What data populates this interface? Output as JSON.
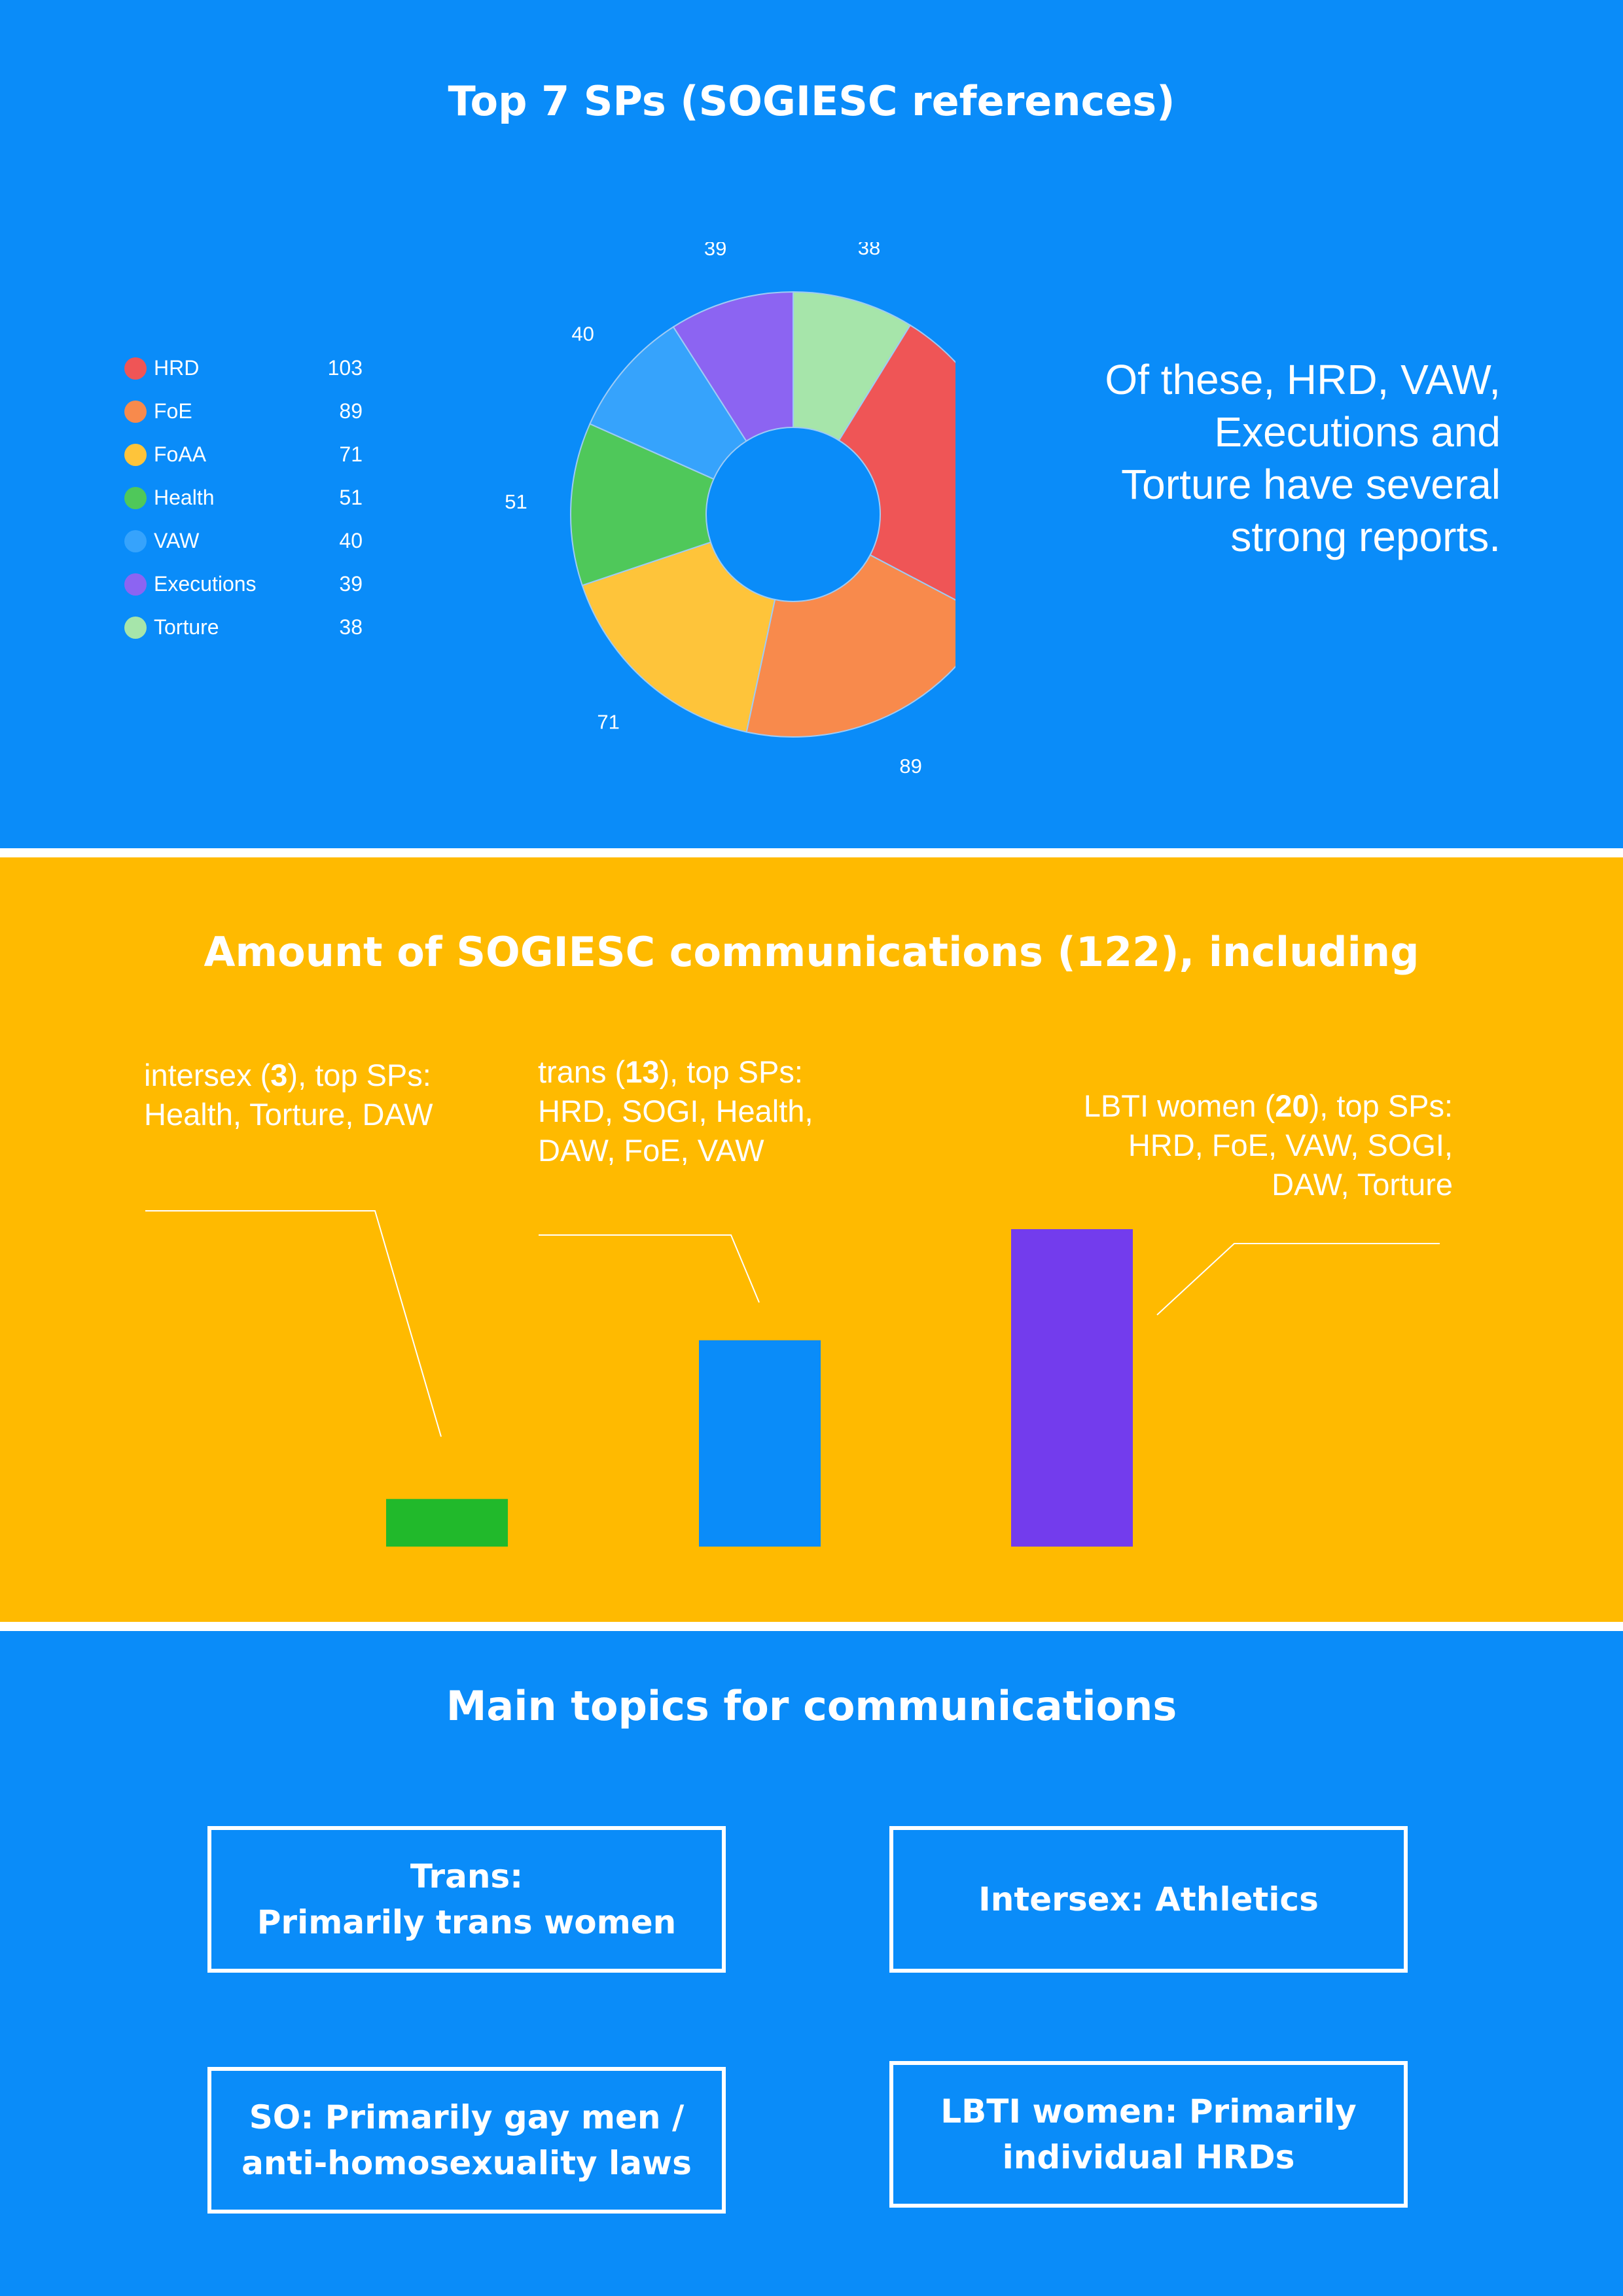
{
  "colors": {
    "panel_blue": "#0a8cf9",
    "panel_yellow": "#ffba00"
  },
  "section1": {
    "title": "Top 7 SPs (SOGIESC references)",
    "note": "Of these, HRD, VAW, Executions and Torture have several strong reports."
  },
  "section2": {
    "title": "Amount of SOGIESC communications (122), including"
  },
  "section3": {
    "title": "Main topics for communications",
    "topics": [
      "Trans:\nPrimarily trans women",
      "Intersex: Athletics",
      "SO: Primarily gay men / anti-homosexuality laws",
      "LBTI women: Primarily individual HRDs"
    ]
  },
  "chart_data": [
    {
      "type": "pie",
      "donut": true,
      "categories": [
        "HRD",
        "FoE",
        "FoAA",
        "Health",
        "VAW",
        "Executions",
        "Torture"
      ],
      "values": [
        103,
        89,
        71,
        51,
        40,
        39,
        38
      ],
      "colors": [
        "#ef5556",
        "#f88a4c",
        "#fec43a",
        "#4fc85a",
        "#36a3fc",
        "#8c64f2",
        "#a6e5aa"
      ],
      "legend_position": "left"
    },
    {
      "type": "bar",
      "categories": [
        "intersex",
        "trans",
        "LBTI women"
      ],
      "values": [
        3,
        13,
        20
      ],
      "colors": [
        "#21b92b",
        "#0a8cf9",
        "#733ced"
      ],
      "annotations": [
        {
          "pre": "intersex (",
          "num": "3",
          "post": "), top SPs:",
          "sps": "Health, Torture, DAW"
        },
        {
          "pre": "trans (",
          "num": "13",
          "post": "), top SPs:",
          "sps": "HRD, SOGI, Health, DAW, FoE, VAW"
        },
        {
          "pre": "LBTI women (",
          "num": "20",
          "post": "), top SPs:",
          "sps": "HRD, FoE, VAW, SOGI, DAW, Torture"
        }
      ]
    }
  ]
}
